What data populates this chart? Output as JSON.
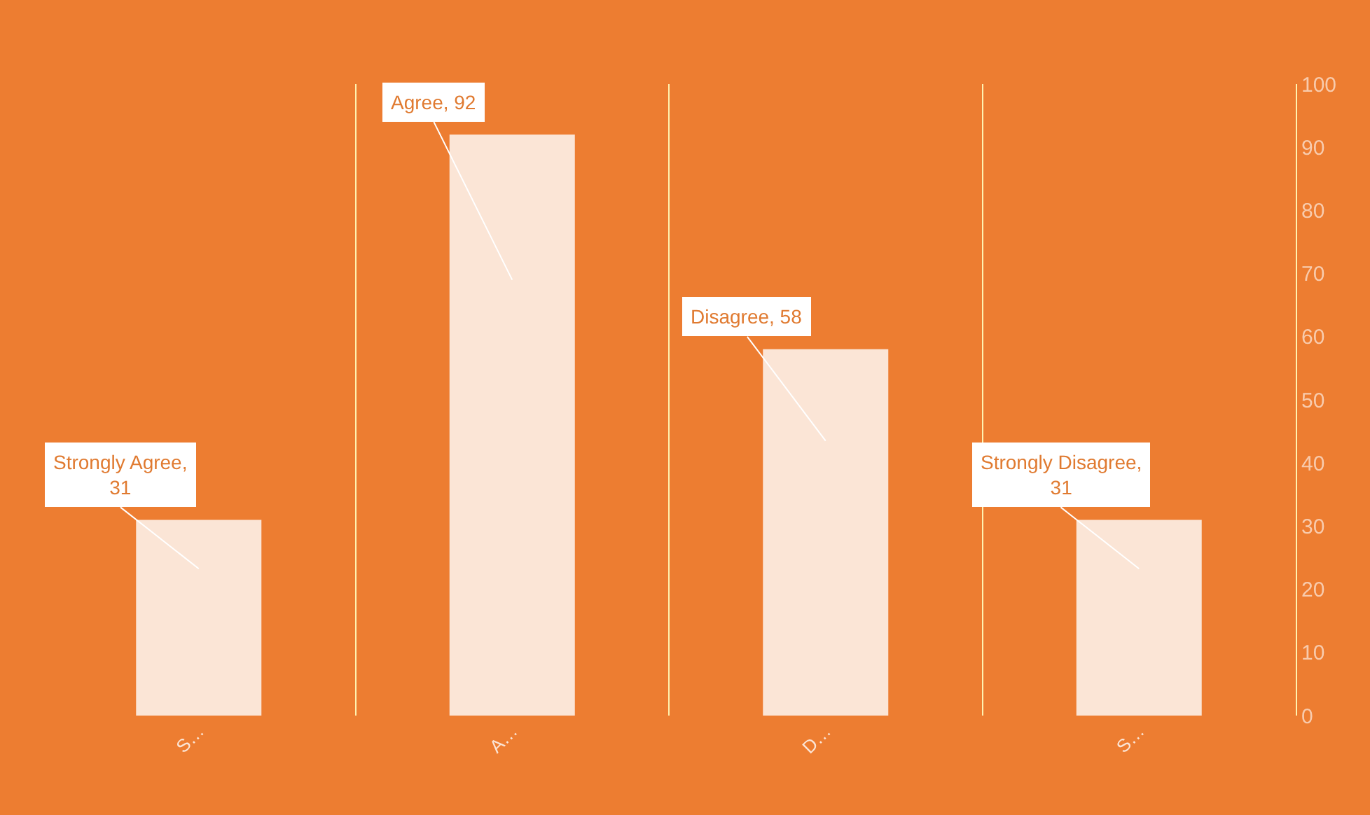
{
  "chart_data": {
    "type": "bar",
    "categories": [
      "S…",
      "A…",
      "D…",
      "S…"
    ],
    "values": [
      31,
      92,
      58,
      31
    ],
    "value_labels": [
      "Strongly Agree, 31",
      "Agree, 92",
      "Disagree, 58",
      "Strongly Disagree, 31"
    ],
    "color": "#fbe5d6",
    "ylim": [
      0,
      100
    ],
    "yticks": [
      0,
      10,
      20,
      30,
      40,
      50,
      60,
      70,
      80,
      90,
      100
    ],
    "grid": "x"
  }
}
